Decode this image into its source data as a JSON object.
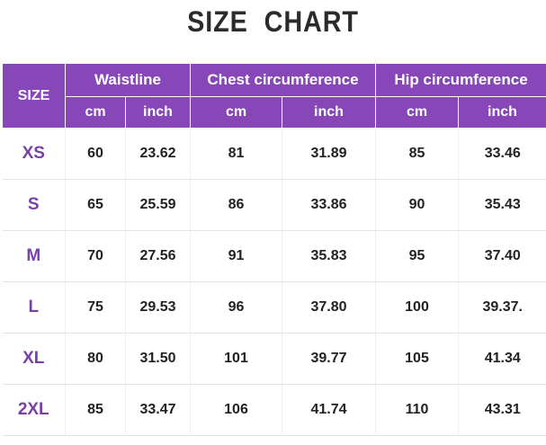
{
  "header": {
    "title": "SIZE CHART"
  },
  "table": {
    "size_label": "SIZE",
    "groups": [
      "Waistline",
      "Chest circumference",
      "Hip circumference"
    ],
    "units": [
      "cm",
      "inch",
      "cm",
      "inch",
      "cm",
      "inch"
    ],
    "rows": [
      [
        "XS",
        "60",
        "23.62",
        "81",
        "31.89",
        "85",
        "33.46"
      ],
      [
        "S",
        "65",
        "25.59",
        "86",
        "33.86",
        "90",
        "35.43"
      ],
      [
        "M",
        "70",
        "27.56",
        "91",
        "35.83",
        "95",
        "37.40"
      ],
      [
        "L",
        "75",
        "29.53",
        "96",
        "37.80",
        "100",
        "39.37."
      ],
      [
        "XL",
        "80",
        "31.50",
        "101",
        "39.77",
        "105",
        "41.34"
      ],
      [
        "2XL",
        "85",
        "33.47",
        "106",
        "41.74",
        "110",
        "43.31"
      ]
    ]
  }
}
